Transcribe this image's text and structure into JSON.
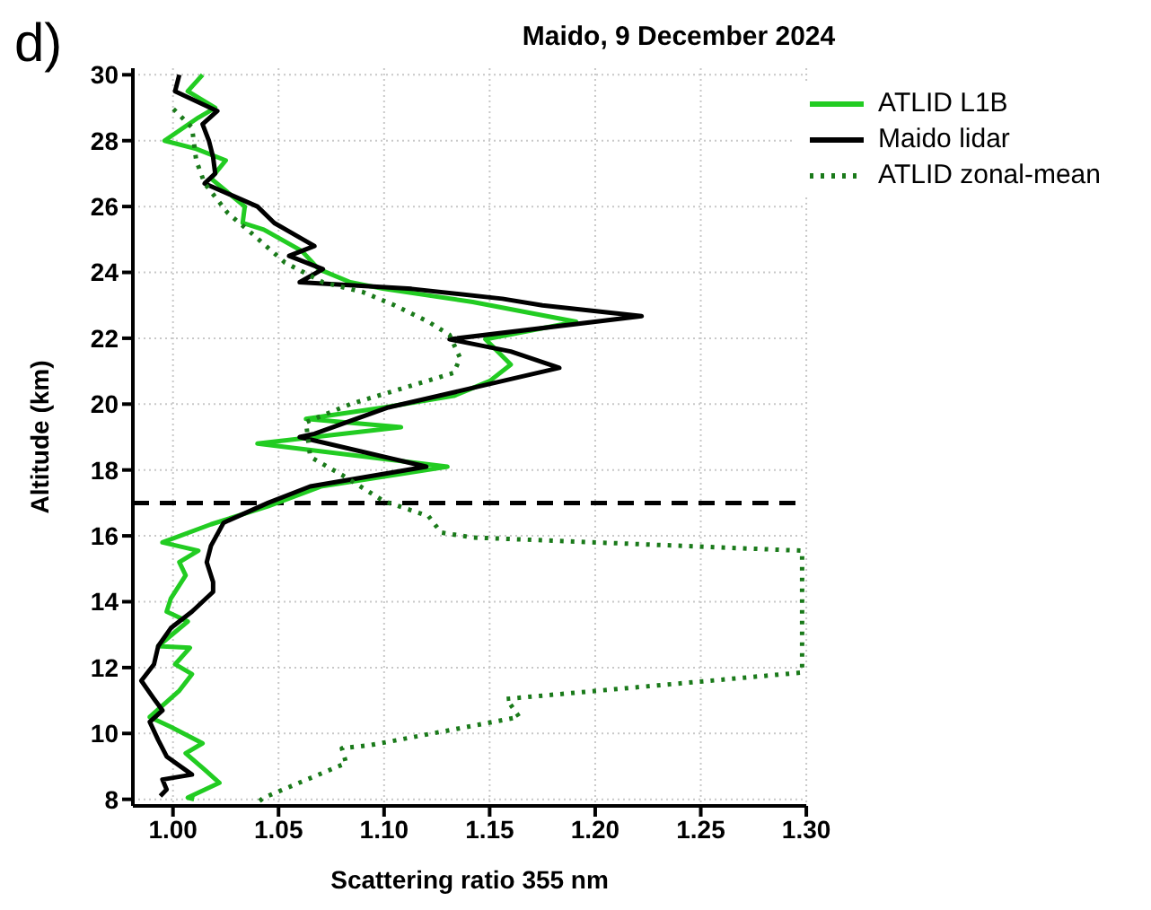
{
  "chart_data": {
    "type": "line",
    "orientation": "horizontal",
    "title": "Maido, 9 December 2024",
    "xlabel": "Scattering ratio 355 nm",
    "ylabel": "Altitude (km)",
    "annotations": [
      "d)"
    ],
    "xlim": [
      0.981,
      1.3
    ],
    "xticks": [
      {
        "value": 1.0,
        "label": "1.00"
      },
      {
        "value": 1.05,
        "label": "1.05"
      },
      {
        "value": 1.1,
        "label": "1.10"
      },
      {
        "value": 1.15,
        "label": "1.15"
      },
      {
        "value": 1.2,
        "label": "1.20"
      },
      {
        "value": 1.25,
        "label": "1.25"
      },
      {
        "value": 1.3,
        "label": "1.30"
      }
    ],
    "ylim": [
      7.8,
      30.2
    ],
    "yticks": [
      8,
      10,
      12,
      14,
      16,
      18,
      20,
      22,
      24,
      26,
      28,
      30
    ],
    "grid": true,
    "legend": "top right",
    "ref_lines": [
      {
        "axis": "y",
        "value": 17,
        "color": "#000000",
        "line_style": "dashed"
      }
    ],
    "series": [
      {
        "name": "ATLID L1B",
        "color": "#22cc22",
        "line_style": "solid",
        "x": [
          8.0,
          8.05,
          8.5,
          8.9,
          9.4,
          9.7,
          10.2,
          10.5,
          11.3,
          11.8,
          12.1,
          12.6,
          12.65,
          13.4,
          13.7,
          14.1,
          14.8,
          15.2,
          15.55,
          15.8,
          16.35,
          16.9,
          17.5,
          18.1,
          18.8,
          19.3,
          19.55,
          19.9,
          20.25,
          20.7,
          21.2,
          21.97,
          22.5,
          23.1,
          23.5,
          23.7,
          24.1,
          24.65,
          25.3,
          25.5,
          26.0,
          26.85,
          27.4,
          27.75,
          28.0,
          28.7,
          29.0,
          29.5,
          30.0
        ],
        "values": [
          1.01,
          1.007,
          1.022,
          1.015,
          1.006,
          1.014,
          0.999,
          0.989,
          1.003,
          1.009,
          1.001,
          1.008,
          0.993,
          1.007,
          0.997,
          0.999,
          1.006,
          1.003,
          1.012,
          0.995,
          1.018,
          1.045,
          1.07,
          1.13,
          1.04,
          1.108,
          1.063,
          1.1,
          1.133,
          1.15,
          1.16,
          1.148,
          1.191,
          1.142,
          1.1,
          1.084,
          1.069,
          1.061,
          1.043,
          1.033,
          1.034,
          1.018,
          1.025,
          1.011,
          0.996,
          1.012,
          1.02,
          1.007,
          1.014
        ]
      },
      {
        "name": "Maido lidar",
        "color": "#000000",
        "line_style": "solid",
        "x": [
          8.1,
          8.3,
          8.6,
          8.75,
          9.3,
          9.8,
          10.35,
          10.7,
          11.05,
          11.6,
          12.1,
          12.65,
          13.2,
          13.7,
          14.3,
          14.6,
          15.2,
          15.7,
          16.4,
          17.0,
          17.5,
          18.1,
          19.0,
          19.1,
          19.9,
          21.1,
          21.6,
          21.97,
          22.67,
          23.0,
          23.2,
          23.5,
          23.7,
          24.1,
          24.5,
          24.8,
          25.5,
          26.0,
          26.7,
          27.0,
          27.5,
          28.0,
          28.5,
          28.9,
          29.5,
          30.0
        ],
        "values": [
          0.994,
          0.997,
          0.995,
          1.009,
          0.997,
          0.993,
          0.989,
          0.995,
          0.991,
          0.985,
          0.991,
          0.993,
          0.999,
          1.009,
          1.019,
          1.019,
          1.016,
          1.018,
          1.024,
          1.045,
          1.065,
          1.12,
          1.06,
          1.067,
          1.102,
          1.183,
          1.16,
          1.131,
          1.222,
          1.175,
          1.156,
          1.113,
          1.06,
          1.071,
          1.055,
          1.067,
          1.048,
          1.04,
          1.015,
          1.02,
          1.019,
          1.017,
          1.014,
          1.021,
          1.001,
          1.003
        ]
      },
      {
        "name": "ATLID zonal-mean",
        "color": "#1a7a1a",
        "line_style": "dotted",
        "x": [
          7.95,
          8.05,
          9.1,
          9.55,
          9.65,
          10.5,
          11.05,
          11.85,
          13.0,
          14.0,
          15.55,
          15.95,
          16.1,
          16.6,
          17.05,
          17.85,
          18.4,
          19.45,
          20.0,
          20.95,
          21.4,
          22.1,
          22.5,
          23.0,
          23.4,
          23.7,
          24.3,
          25.2,
          25.8,
          26.7,
          27.4,
          28.4,
          29.1
        ],
        "values": [
          1.041,
          1.043,
          1.082,
          1.08,
          1.094,
          1.164,
          1.158,
          1.298,
          null,
          null,
          1.298,
          1.142,
          1.127,
          1.121,
          1.1,
          1.08,
          1.065,
          1.063,
          1.084,
          1.133,
          1.136,
          1.131,
          1.121,
          1.105,
          1.09,
          1.071,
          1.053,
          1.037,
          1.026,
          1.015,
          1.011,
          1.009,
          0.998
        ]
      }
    ]
  }
}
